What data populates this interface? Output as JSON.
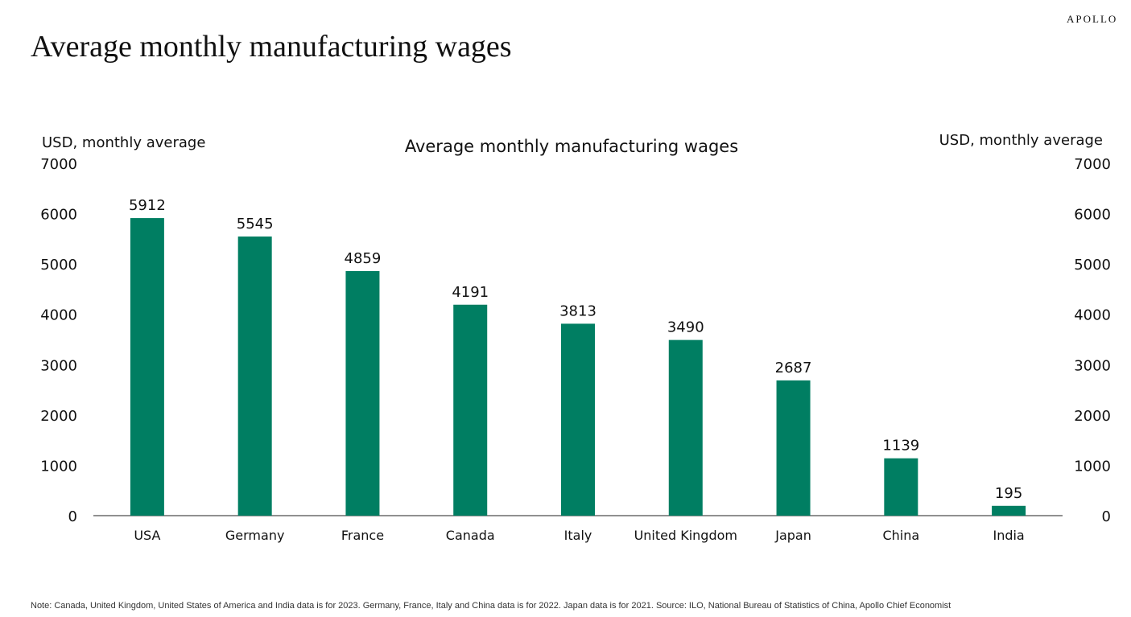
{
  "header": {
    "title": "Average monthly manufacturing wages",
    "logo": "APOLLO"
  },
  "footnote": "Note: Canada, United Kingdom, United States of America and India data is for 2023. Germany, France, Italy and China data is for 2022. Japan data is for 2021. Source: ILO, National Bureau of Statistics of China, Apollo Chief Economist",
  "chart_data": {
    "type": "bar",
    "title": "Average monthly manufacturing wages",
    "ylabel_left": "USD, monthly average",
    "ylabel_right": "USD, monthly average",
    "categories": [
      "USA",
      "Germany",
      "France",
      "Canada",
      "Italy",
      "United Kingdom",
      "Japan",
      "China",
      "India"
    ],
    "values": [
      5912,
      5545,
      4859,
      4191,
      3813,
      3490,
      2687,
      1139,
      195
    ],
    "data_labels": true,
    "ylim": [
      0,
      7000
    ],
    "yticks": [
      0,
      1000,
      2000,
      3000,
      4000,
      5000,
      6000,
      7000
    ],
    "grid": false,
    "bar_color": "#007E62"
  }
}
